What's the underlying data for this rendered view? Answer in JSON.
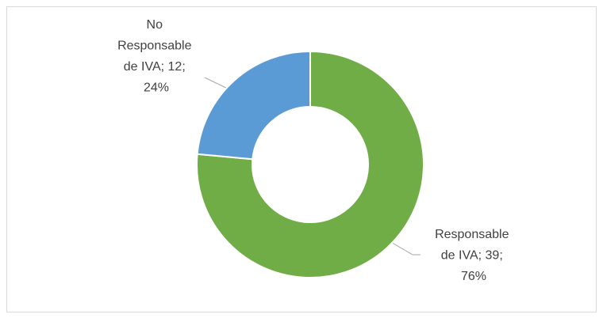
{
  "chart_data": {
    "type": "donut",
    "categories": [
      "Responsable de IVA",
      "No Responsable de IVA"
    ],
    "values": [
      39,
      12
    ],
    "value_labels": [
      "Responsable de IVA; 39; 76%",
      "No Responsable de IVA; 12; 24%"
    ],
    "colors": [
      "#70ad47",
      "#5b9bd5"
    ]
  }
}
